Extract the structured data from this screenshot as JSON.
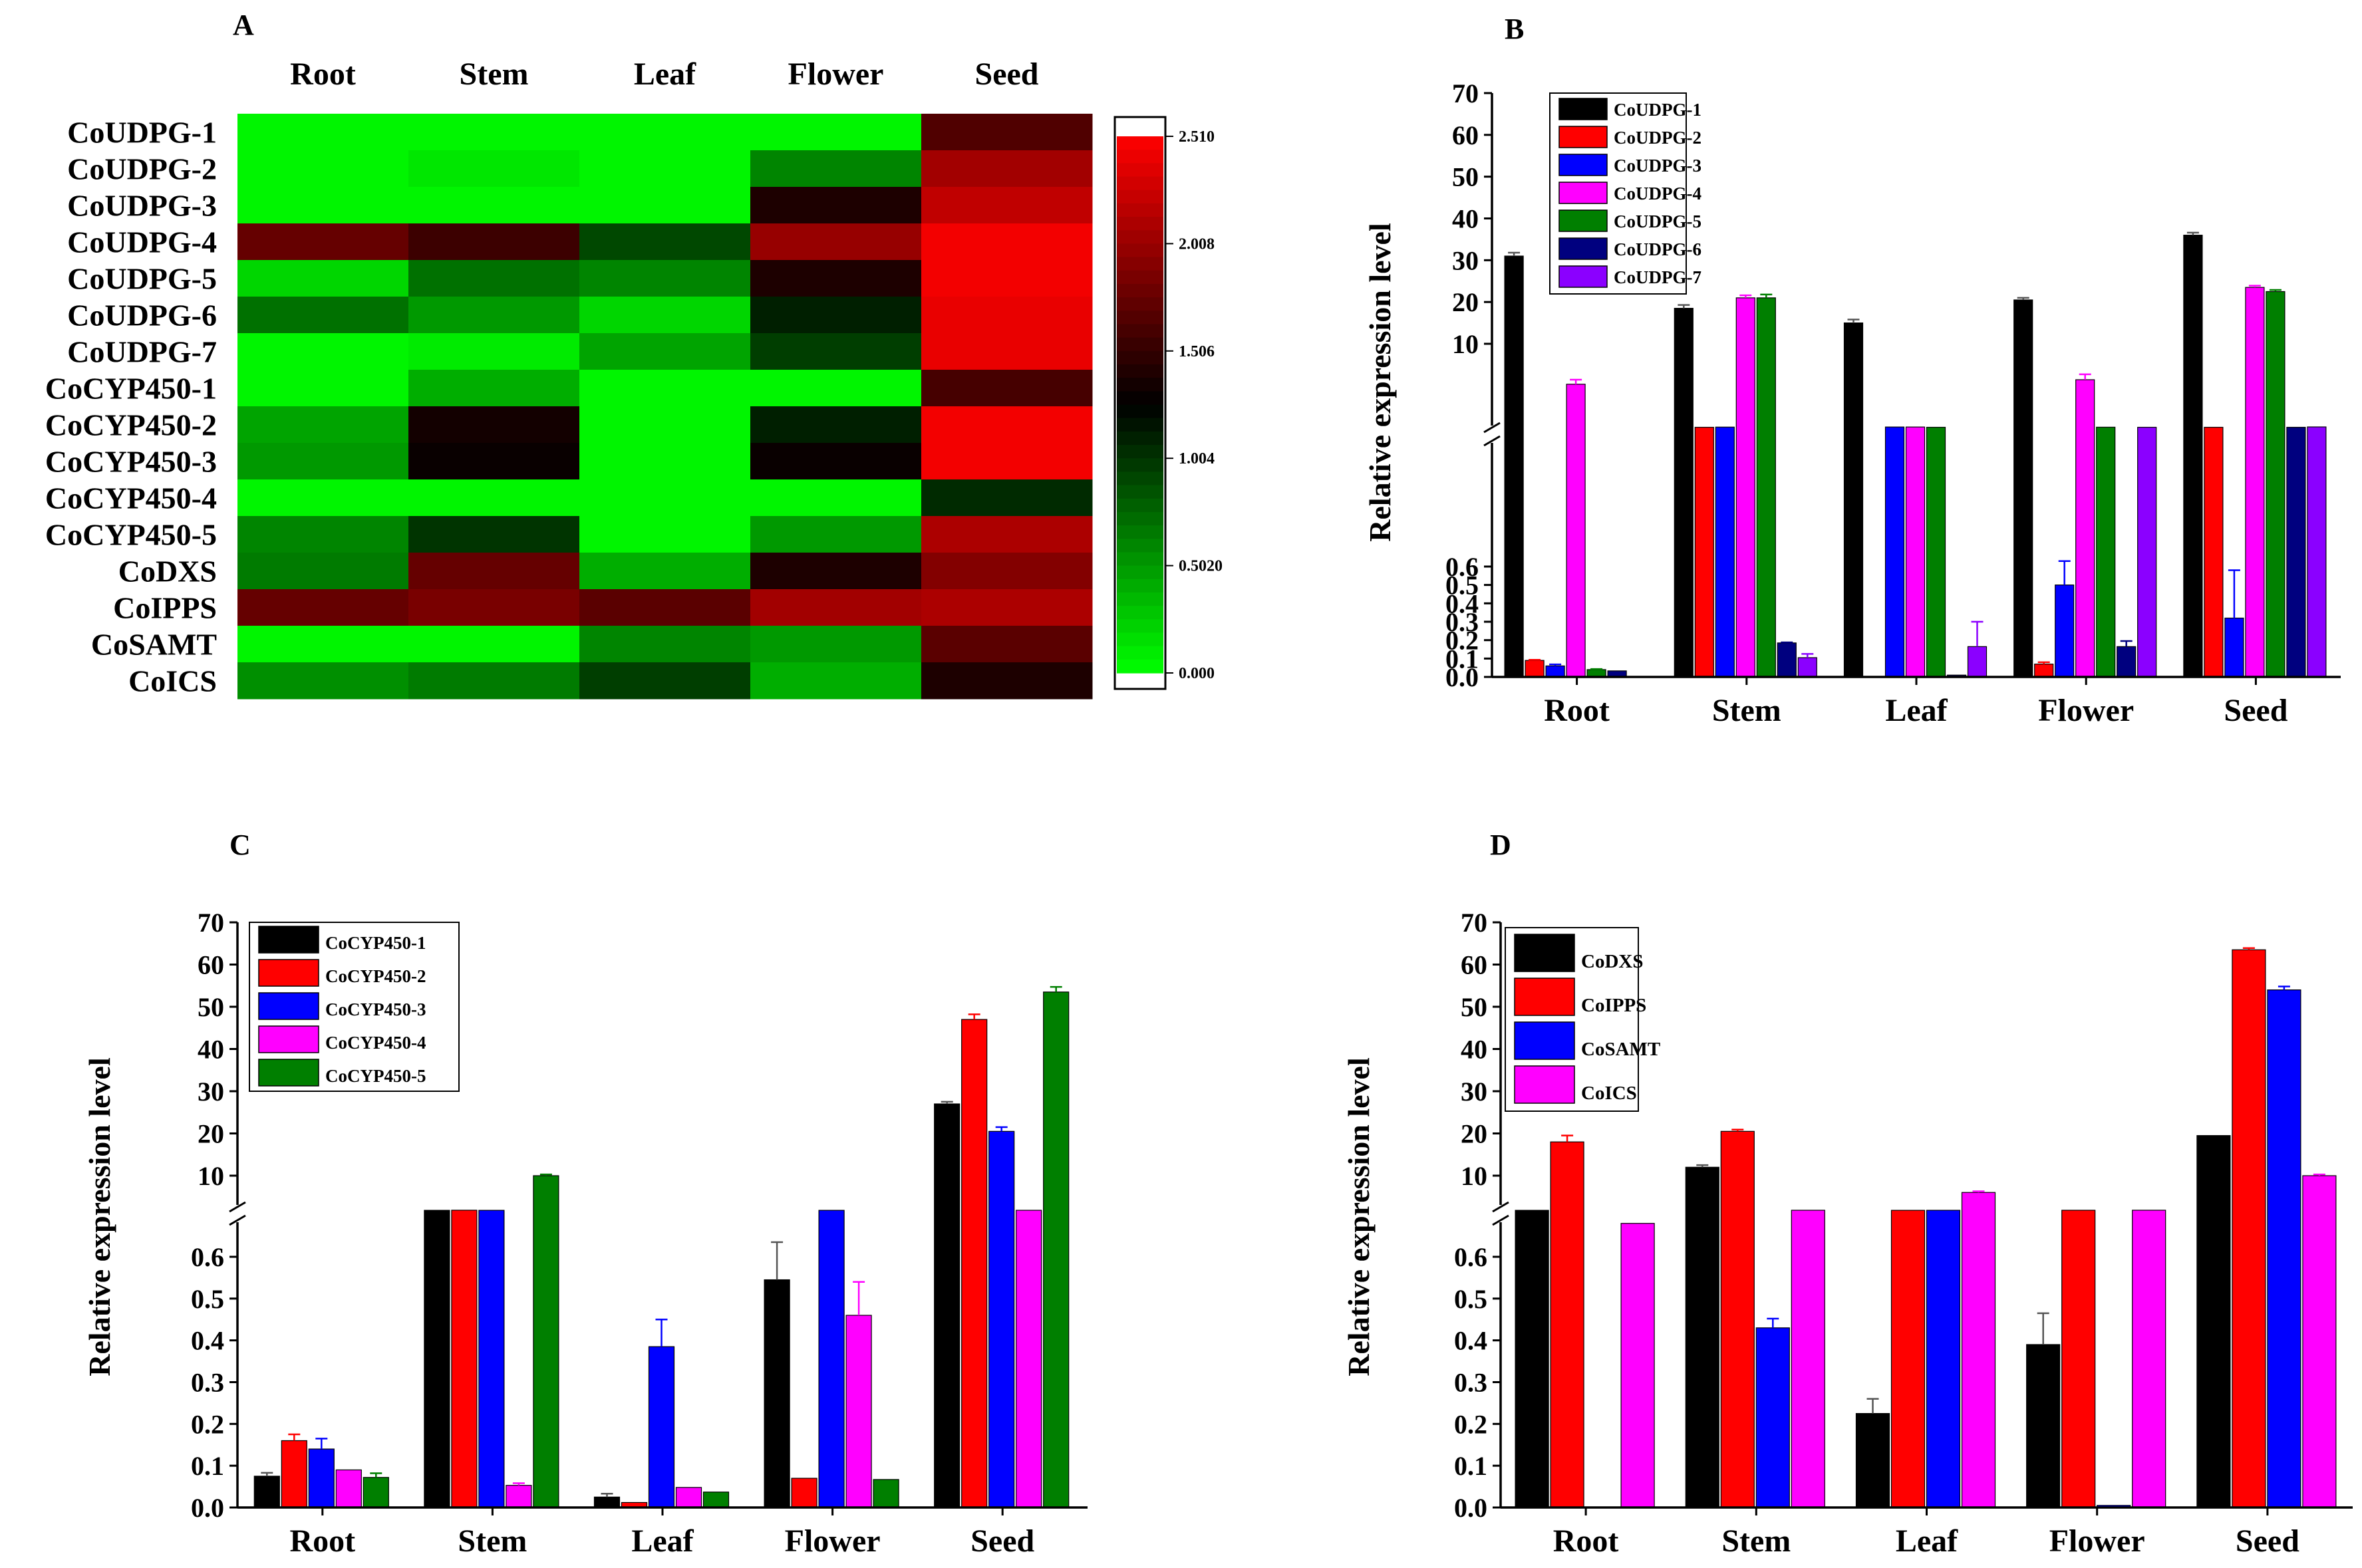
{
  "chart_data": [
    {
      "panel": "A",
      "type": "heatmap",
      "columns": [
        "Root",
        "Stem",
        "Leaf",
        "Flower",
        "Seed"
      ],
      "rows": [
        "CoUDPG-1",
        "CoUDPG-2",
        "CoUDPG-3",
        "CoUDPG-4",
        "CoUDPG-5",
        "CoUDPG-6",
        "CoUDPG-7",
        "CoCYP450-1",
        "CoCYP450-2",
        "CoCYP450-3",
        "CoCYP450-4",
        "CoCYP450-5",
        "CoDXS",
        "CoIPPS",
        "CoSAMT",
        "CoICS"
      ],
      "values": [
        [
          0.05,
          0.05,
          0.05,
          0.05,
          1.65
        ],
        [
          0.05,
          0.12,
          0.05,
          0.6,
          2.05
        ],
        [
          0.05,
          0.05,
          0.05,
          1.4,
          2.2
        ],
        [
          1.75,
          1.55,
          0.9,
          2.0,
          2.45
        ],
        [
          0.2,
          0.7,
          0.6,
          1.4,
          2.45
        ],
        [
          0.7,
          0.5,
          0.2,
          1.1,
          2.4
        ],
        [
          0.05,
          0.1,
          0.45,
          0.95,
          2.4
        ],
        [
          0.05,
          0.4,
          0.05,
          0.05,
          1.6
        ],
        [
          0.45,
          1.35,
          0.05,
          1.1,
          2.45
        ],
        [
          0.5,
          1.3,
          0.05,
          1.3,
          2.45
        ],
        [
          0.05,
          0.05,
          0.05,
          0.05,
          1.05
        ],
        [
          0.6,
          1.0,
          0.05,
          0.5,
          2.1
        ],
        [
          0.65,
          1.75,
          0.4,
          1.4,
          1.9
        ],
        [
          1.75,
          1.85,
          1.7,
          2.05,
          2.1
        ],
        [
          0.05,
          0.05,
          0.6,
          0.5,
          1.7
        ],
        [
          0.55,
          0.65,
          0.95,
          0.4,
          1.4
        ]
      ],
      "colorbar": {
        "min": 0,
        "max": 2.51,
        "tick_labels": [
          "2.510",
          "2.008",
          "1.506",
          "1.004",
          "0.5020",
          "0.000"
        ],
        "low_color": "#00ff00",
        "mid_color": "#000000",
        "high_color": "#ff0000"
      }
    },
    {
      "panel": "B",
      "type": "bar",
      "categories": [
        "Root",
        "Stem",
        "Leaf",
        "Flower",
        "Seed"
      ],
      "ylabel": "Relative expression level",
      "y_break": true,
      "y_lower_ticks": [
        "0.0",
        "0.1",
        "0.2",
        "0.3",
        "0.4",
        "0.5",
        "0.6"
      ],
      "y_upper_ticks": [
        "10",
        "20",
        "30",
        "40",
        "50",
        "60",
        "70"
      ],
      "legend_position": "top-left",
      "series": [
        {
          "name": "CoUDPG-1",
          "color": "#000000",
          "values": [
            31,
            18.5,
            15,
            20.5,
            36
          ],
          "errors": [
            0.8,
            0.8,
            0.8,
            0.5,
            0.6
          ]
        },
        {
          "name": "CoUDPG-2",
          "color": "#ff0000",
          "values": [
            0.09,
            0.7,
            0,
            0.07,
            0.7
          ],
          "errors": [
            0.003,
            0,
            0,
            0.01,
            0
          ]
        },
        {
          "name": "CoUDPG-3",
          "color": "#0000ff",
          "values": [
            0.06,
            0.72,
            0.73,
            0.5,
            0.32
          ],
          "errors": [
            0.008,
            0,
            0,
            0.13,
            0.26
          ]
        },
        {
          "name": "CoUDPG-4",
          "color": "#ff00ff",
          "values": [
            5.5,
            21,
            0.73,
            6,
            23.5
          ],
          "errors": [
            0.5,
            0.6,
            0,
            0.6,
            0.4
          ]
        },
        {
          "name": "CoUDPG-5",
          "color": "#007f00",
          "values": [
            0.04,
            21,
            0.7,
            0.71,
            22.5
          ],
          "errors": [
            0.003,
            0.8,
            0,
            0,
            0.4
          ]
        },
        {
          "name": "CoUDPG-6",
          "color": "#00007f",
          "values": [
            0.033,
            0.185,
            0.01,
            0.165,
            0.7
          ],
          "errors": [
            0,
            0.003,
            0,
            0.03,
            0
          ]
        },
        {
          "name": "CoUDPG-7",
          "color": "#8b00ff",
          "values": [
            0,
            0.105,
            0.165,
            0.7,
            0.74
          ],
          "errors": [
            0,
            0.02,
            0.135,
            0,
            0
          ]
        }
      ]
    },
    {
      "panel": "C",
      "type": "bar",
      "categories": [
        "Root",
        "Stem",
        "Leaf",
        "Flower",
        "Seed"
      ],
      "ylabel": "Relative expression level",
      "y_break": true,
      "y_lower_ticks": [
        "0.0",
        "0.1",
        "0.2",
        "0.3",
        "0.4",
        "0.5",
        "0.6"
      ],
      "y_upper_ticks": [
        "10",
        "20",
        "30",
        "40",
        "50",
        "60",
        "70"
      ],
      "legend_position": "top-left",
      "series": [
        {
          "name": "CoCYP450-1",
          "color": "#000000",
          "values": [
            0.075,
            0.7,
            0.025,
            0.545,
            27
          ],
          "errors": [
            0.008,
            0,
            0.008,
            0.09,
            0.5
          ]
        },
        {
          "name": "CoCYP450-2",
          "color": "#ff0000",
          "values": [
            0.16,
            0.73,
            0.012,
            0.07,
            47
          ],
          "errors": [
            0.015,
            0,
            0,
            0,
            1.2
          ]
        },
        {
          "name": "CoCYP450-3",
          "color": "#0000ff",
          "values": [
            0.14,
            0.7,
            0.385,
            0.7,
            20.5
          ],
          "errors": [
            0.025,
            0,
            0.065,
            0,
            1
          ]
        },
        {
          "name": "CoCYP450-4",
          "color": "#ff00ff",
          "values": [
            0.09,
            0.053,
            0.048,
            0.46,
            0.71
          ],
          "errors": [
            0,
            0.005,
            0,
            0.08,
            0
          ]
        },
        {
          "name": "CoCYP450-5",
          "color": "#007f00",
          "values": [
            0.072,
            10,
            0.037,
            0.067,
            53.5
          ],
          "errors": [
            0.01,
            0.3,
            0,
            0,
            1.2
          ]
        }
      ]
    },
    {
      "panel": "D",
      "type": "bar",
      "categories": [
        "Root",
        "Stem",
        "Leaf",
        "Flower",
        "Seed"
      ],
      "ylabel": "Relative expression level",
      "y_break": true,
      "y_lower_ticks": [
        "0.0",
        "0.1",
        "0.2",
        "0.3",
        "0.4",
        "0.5",
        "0.6"
      ],
      "y_upper_ticks": [
        "10",
        "20",
        "30",
        "40",
        "50",
        "60",
        "70"
      ],
      "legend_position": "top-left",
      "series": [
        {
          "name": "CoDXS",
          "color": "#000000",
          "values": [
            0.7,
            12,
            0.225,
            0.39,
            19.5
          ],
          "errors": [
            0,
            0.5,
            0.035,
            0.075,
            0
          ]
        },
        {
          "name": "CoIPPS",
          "color": "#ff0000",
          "values": [
            18,
            20.5,
            0.7,
            0.72,
            63.5
          ],
          "errors": [
            1.5,
            0.4,
            0,
            0,
            0.4
          ]
        },
        {
          "name": "CoSAMT",
          "color": "#0000ff",
          "values": [
            0,
            0.43,
            0.71,
            0.005,
            54
          ],
          "errors": [
            0,
            0.022,
            0,
            0,
            0.8
          ]
        },
        {
          "name": "CoICS",
          "color": "#ff00ff",
          "values": [
            0.69,
            0.72,
            5.5,
            0.73,
            10
          ],
          "errors": [
            0,
            0,
            0.3,
            0,
            0.3
          ]
        }
      ]
    }
  ]
}
